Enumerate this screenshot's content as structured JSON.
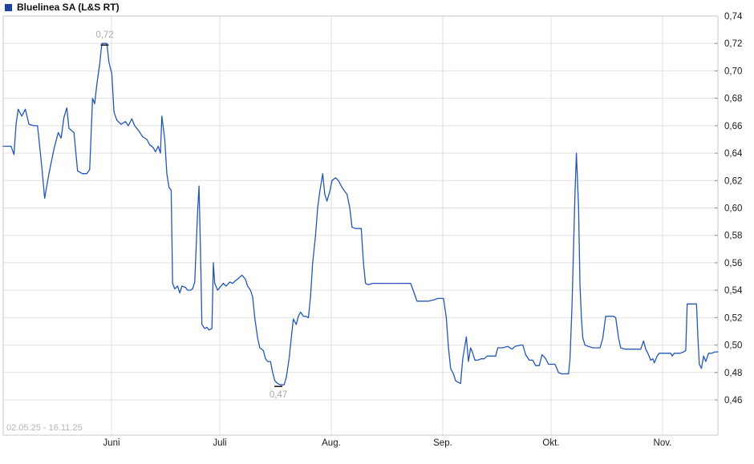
{
  "header": {
    "title": "Bluelinea SA (L&S RT)",
    "legend_icon": "blue-square",
    "legend_color": "#1c449c"
  },
  "footer": {
    "date_range": "02.05.25 - 16.11.25"
  },
  "chart_data": {
    "type": "line",
    "title": "Bluelinea SA (L&S RT)",
    "date_range_label": "02.05.25 - 16.11.25",
    "line_color": "#2257b8",
    "grid_color": "#e0e0e0",
    "border_color": "#c8c8c8",
    "tick_color": "#8a8a8a",
    "label_color": "#1a1a1a",
    "marker_label_color": "#a8a8a8",
    "marker_tick_color": "#111111",
    "y_axis": {
      "min": 0.46,
      "max": 0.74,
      "step": 0.02,
      "side": "right",
      "tick_values": [
        0.74,
        0.72,
        0.7,
        0.68,
        0.66,
        0.64,
        0.62,
        0.6,
        0.58,
        0.56,
        0.54,
        0.52,
        0.5,
        0.48,
        0.46
      ],
      "tick_labels": [
        "0,74",
        "0,72",
        "0,70",
        "0,68",
        "0,66",
        "0,64",
        "0,62",
        "0,60",
        "0,58",
        "0,56",
        "0,54",
        "0,52",
        "0,50",
        "0,48",
        "0,46"
      ]
    },
    "x_axis": {
      "range_note": "fraction 0..1 spans 02.05.25 to 16.11.25",
      "ticks": [
        {
          "label": "Juni",
          "f": 0.1515
        },
        {
          "label": "Juli",
          "f": 0.303
        },
        {
          "label": "Aug.",
          "f": 0.459
        },
        {
          "label": "Sep.",
          "f": 0.615
        },
        {
          "label": "Okt.",
          "f": 0.7665
        },
        {
          "label": "Nov.",
          "f": 0.9225
        }
      ]
    },
    "high": {
      "label": "0,72",
      "value": 0.72,
      "f": 0.142
    },
    "low": {
      "label": "0,47",
      "value": 0.47,
      "f": 0.385
    },
    "points": [
      [
        0.0,
        0.645
      ],
      [
        0.011,
        0.645
      ],
      [
        0.015,
        0.639
      ],
      [
        0.018,
        0.661
      ],
      [
        0.021,
        0.672
      ],
      [
        0.026,
        0.667
      ],
      [
        0.031,
        0.672
      ],
      [
        0.036,
        0.661
      ],
      [
        0.043,
        0.66
      ],
      [
        0.048,
        0.66
      ],
      [
        0.054,
        0.63
      ],
      [
        0.058,
        0.607
      ],
      [
        0.064,
        0.625
      ],
      [
        0.071,
        0.643
      ],
      [
        0.077,
        0.655
      ],
      [
        0.081,
        0.651
      ],
      [
        0.085,
        0.666
      ],
      [
        0.089,
        0.673
      ],
      [
        0.092,
        0.658
      ],
      [
        0.099,
        0.655
      ],
      [
        0.104,
        0.627
      ],
      [
        0.111,
        0.625
      ],
      [
        0.117,
        0.625
      ],
      [
        0.121,
        0.628
      ],
      [
        0.125,
        0.68
      ],
      [
        0.128,
        0.676
      ],
      [
        0.131,
        0.69
      ],
      [
        0.135,
        0.705
      ],
      [
        0.138,
        0.72
      ],
      [
        0.145,
        0.72
      ],
      [
        0.148,
        0.706
      ],
      [
        0.152,
        0.698
      ],
      [
        0.155,
        0.67
      ],
      [
        0.159,
        0.664
      ],
      [
        0.165,
        0.661
      ],
      [
        0.171,
        0.663
      ],
      [
        0.175,
        0.66
      ],
      [
        0.18,
        0.665
      ],
      [
        0.184,
        0.66
      ],
      [
        0.19,
        0.656
      ],
      [
        0.195,
        0.652
      ],
      [
        0.201,
        0.65
      ],
      [
        0.205,
        0.646
      ],
      [
        0.21,
        0.644
      ],
      [
        0.213,
        0.641
      ],
      [
        0.217,
        0.645
      ],
      [
        0.22,
        0.64
      ],
      [
        0.222,
        0.667
      ],
      [
        0.226,
        0.65
      ],
      [
        0.229,
        0.625
      ],
      [
        0.232,
        0.615
      ],
      [
        0.235,
        0.613
      ],
      [
        0.237,
        0.545
      ],
      [
        0.24,
        0.541
      ],
      [
        0.244,
        0.543
      ],
      [
        0.247,
        0.538
      ],
      [
        0.25,
        0.543
      ],
      [
        0.255,
        0.542
      ],
      [
        0.258,
        0.54
      ],
      [
        0.262,
        0.54
      ],
      [
        0.265,
        0.541
      ],
      [
        0.268,
        0.546
      ],
      [
        0.272,
        0.598
      ],
      [
        0.274,
        0.616
      ],
      [
        0.276,
        0.57
      ],
      [
        0.278,
        0.515
      ],
      [
        0.282,
        0.512
      ],
      [
        0.285,
        0.513
      ],
      [
        0.288,
        0.511
      ],
      [
        0.292,
        0.512
      ],
      [
        0.294,
        0.56
      ],
      [
        0.296,
        0.545
      ],
      [
        0.3,
        0.54
      ],
      [
        0.303,
        0.542
      ],
      [
        0.308,
        0.545
      ],
      [
        0.312,
        0.543
      ],
      [
        0.317,
        0.546
      ],
      [
        0.321,
        0.545
      ],
      [
        0.325,
        0.547
      ],
      [
        0.33,
        0.549
      ],
      [
        0.334,
        0.551
      ],
      [
        0.339,
        0.548
      ],
      [
        0.342,
        0.543
      ],
      [
        0.346,
        0.54
      ],
      [
        0.349,
        0.535
      ],
      [
        0.352,
        0.52
      ],
      [
        0.356,
        0.505
      ],
      [
        0.359,
        0.498
      ],
      [
        0.364,
        0.496
      ],
      [
        0.367,
        0.49
      ],
      [
        0.37,
        0.488
      ],
      [
        0.374,
        0.488
      ],
      [
        0.377,
        0.48
      ],
      [
        0.38,
        0.474
      ],
      [
        0.384,
        0.472
      ],
      [
        0.388,
        0.471
      ],
      [
        0.393,
        0.471
      ],
      [
        0.396,
        0.476
      ],
      [
        0.4,
        0.49
      ],
      [
        0.403,
        0.505
      ],
      [
        0.406,
        0.519
      ],
      [
        0.41,
        0.515
      ],
      [
        0.413,
        0.521
      ],
      [
        0.416,
        0.524
      ],
      [
        0.42,
        0.521
      ],
      [
        0.423,
        0.521
      ],
      [
        0.427,
        0.52
      ],
      [
        0.43,
        0.535
      ],
      [
        0.433,
        0.56
      ],
      [
        0.437,
        0.58
      ],
      [
        0.44,
        0.6
      ],
      [
        0.443,
        0.612
      ],
      [
        0.447,
        0.625
      ],
      [
        0.45,
        0.61
      ],
      [
        0.453,
        0.605
      ],
      [
        0.457,
        0.612
      ],
      [
        0.46,
        0.62
      ],
      [
        0.465,
        0.622
      ],
      [
        0.469,
        0.62
      ],
      [
        0.474,
        0.615
      ],
      [
        0.478,
        0.612
      ],
      [
        0.481,
        0.61
      ],
      [
        0.485,
        0.6
      ],
      [
        0.488,
        0.586
      ],
      [
        0.493,
        0.585
      ],
      [
        0.497,
        0.585
      ],
      [
        0.501,
        0.585
      ],
      [
        0.504,
        0.56
      ],
      [
        0.507,
        0.545
      ],
      [
        0.511,
        0.544
      ],
      [
        0.517,
        0.545
      ],
      [
        0.529,
        0.545
      ],
      [
        0.54,
        0.545
      ],
      [
        0.551,
        0.545
      ],
      [
        0.562,
        0.545
      ],
      [
        0.57,
        0.545
      ],
      [
        0.575,
        0.538
      ],
      [
        0.579,
        0.532
      ],
      [
        0.587,
        0.532
      ],
      [
        0.595,
        0.532
      ],
      [
        0.603,
        0.533
      ],
      [
        0.608,
        0.534
      ],
      [
        0.612,
        0.534
      ],
      [
        0.616,
        0.534
      ],
      [
        0.62,
        0.52
      ],
      [
        0.623,
        0.498
      ],
      [
        0.626,
        0.483
      ],
      [
        0.63,
        0.479
      ],
      [
        0.633,
        0.474
      ],
      [
        0.636,
        0.473
      ],
      [
        0.64,
        0.472
      ],
      [
        0.643,
        0.49
      ],
      [
        0.648,
        0.506
      ],
      [
        0.651,
        0.488
      ],
      [
        0.654,
        0.498
      ],
      [
        0.657,
        0.494
      ],
      [
        0.66,
        0.489
      ],
      [
        0.664,
        0.489
      ],
      [
        0.669,
        0.49
      ],
      [
        0.673,
        0.49
      ],
      [
        0.677,
        0.492
      ],
      [
        0.682,
        0.492
      ],
      [
        0.689,
        0.492
      ],
      [
        0.692,
        0.498
      ],
      [
        0.699,
        0.498
      ],
      [
        0.706,
        0.499
      ],
      [
        0.712,
        0.497
      ],
      [
        0.716,
        0.499
      ],
      [
        0.724,
        0.5
      ],
      [
        0.727,
        0.5
      ],
      [
        0.731,
        0.493
      ],
      [
        0.736,
        0.489
      ],
      [
        0.741,
        0.489
      ],
      [
        0.745,
        0.485
      ],
      [
        0.75,
        0.485
      ],
      [
        0.754,
        0.493
      ],
      [
        0.759,
        0.49
      ],
      [
        0.763,
        0.486
      ],
      [
        0.768,
        0.486
      ],
      [
        0.772,
        0.486
      ],
      [
        0.777,
        0.48
      ],
      [
        0.781,
        0.479
      ],
      [
        0.787,
        0.479
      ],
      [
        0.791,
        0.479
      ],
      [
        0.793,
        0.49
      ],
      [
        0.796,
        0.53
      ],
      [
        0.798,
        0.57
      ],
      [
        0.8,
        0.61
      ],
      [
        0.802,
        0.64
      ],
      [
        0.805,
        0.6
      ],
      [
        0.807,
        0.545
      ],
      [
        0.809,
        0.52
      ],
      [
        0.811,
        0.505
      ],
      [
        0.814,
        0.5
      ],
      [
        0.819,
        0.499
      ],
      [
        0.825,
        0.498
      ],
      [
        0.83,
        0.498
      ],
      [
        0.835,
        0.498
      ],
      [
        0.839,
        0.505
      ],
      [
        0.843,
        0.521
      ],
      [
        0.848,
        0.521
      ],
      [
        0.854,
        0.521
      ],
      [
        0.857,
        0.52
      ],
      [
        0.861,
        0.505
      ],
      [
        0.864,
        0.498
      ],
      [
        0.87,
        0.497
      ],
      [
        0.875,
        0.497
      ],
      [
        0.881,
        0.497
      ],
      [
        0.887,
        0.497
      ],
      [
        0.892,
        0.497
      ],
      [
        0.896,
        0.503
      ],
      [
        0.899,
        0.497
      ],
      [
        0.902,
        0.494
      ],
      [
        0.906,
        0.489
      ],
      [
        0.909,
        0.49
      ],
      [
        0.911,
        0.487
      ],
      [
        0.915,
        0.492
      ],
      [
        0.918,
        0.494
      ],
      [
        0.923,
        0.494
      ],
      [
        0.929,
        0.494
      ],
      [
        0.934,
        0.494
      ],
      [
        0.936,
        0.492
      ],
      [
        0.939,
        0.494
      ],
      [
        0.943,
        0.494
      ],
      [
        0.947,
        0.494
      ],
      [
        0.952,
        0.495
      ],
      [
        0.955,
        0.496
      ],
      [
        0.957,
        0.53
      ],
      [
        0.962,
        0.53
      ],
      [
        0.966,
        0.53
      ],
      [
        0.97,
        0.53
      ],
      [
        0.972,
        0.505
      ],
      [
        0.974,
        0.486
      ],
      [
        0.977,
        0.483
      ],
      [
        0.98,
        0.492
      ],
      [
        0.983,
        0.488
      ],
      [
        0.987,
        0.494
      ],
      [
        0.991,
        0.494
      ],
      [
        0.996,
        0.495
      ],
      [
        1.0,
        0.495
      ]
    ]
  }
}
